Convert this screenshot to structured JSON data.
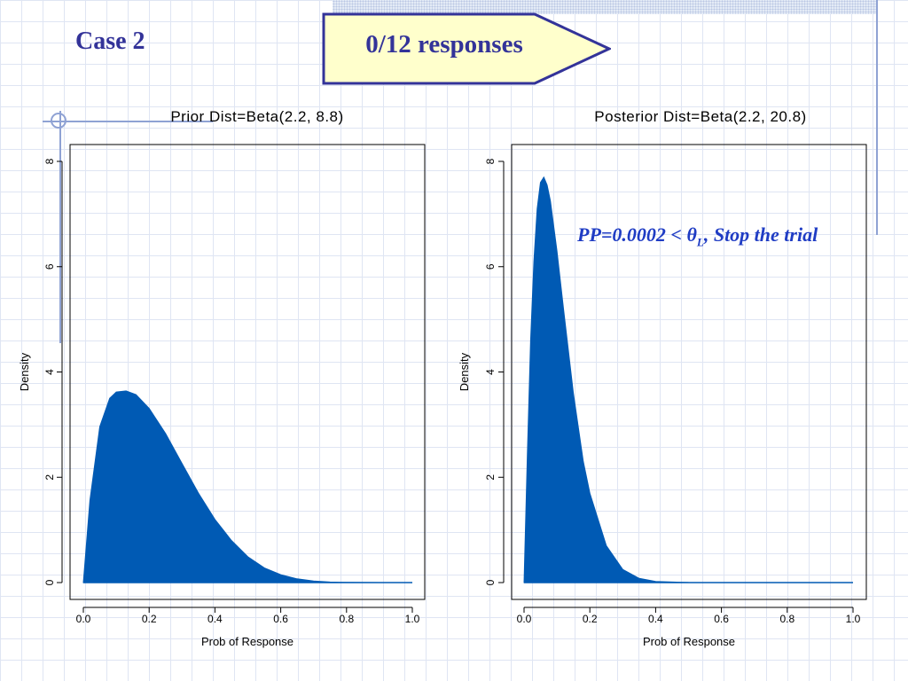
{
  "slide": {
    "title": "Case 2",
    "banner": "0/12 responses",
    "annotation": {
      "prefix": "PP=0.0002 < ",
      "theta": "θ",
      "theta_subscript": "L",
      "suffix": ", Stop the trial"
    },
    "colors": {
      "title": "#333399",
      "banner_fill": "#ffffcc",
      "banner_stroke": "#333399",
      "annotation": "#1f3cc4",
      "curve_fill": "#005ab4"
    }
  },
  "chart_data": [
    {
      "type": "area",
      "title": "Prior Dist=Beta(2.2, 8.8)",
      "xlabel": "Prob of Response",
      "ylabel": "Density",
      "xlim": [
        0,
        1
      ],
      "ylim": [
        0,
        8
      ],
      "xticks": [
        0.0,
        0.2,
        0.4,
        0.6,
        0.8,
        1.0
      ],
      "xtick_labels": [
        "0.0",
        "0.2",
        "0.4",
        "0.6",
        "0.8",
        "1.0"
      ],
      "yticks": [
        0,
        2,
        4,
        6,
        8
      ],
      "ytick_labels": [
        "0",
        "2",
        "4",
        "6",
        "8"
      ],
      "grid": false,
      "series": [
        {
          "x": [
            0.0,
            0.02,
            0.05,
            0.08,
            0.1,
            0.13,
            0.16,
            0.2,
            0.25,
            0.3,
            0.35,
            0.4,
            0.45,
            0.5,
            0.55,
            0.6,
            0.65,
            0.7,
            0.75,
            0.8,
            0.9,
            1.0
          ],
          "y": [
            0.0,
            1.56,
            2.96,
            3.5,
            3.62,
            3.64,
            3.57,
            3.31,
            2.83,
            2.26,
            1.7,
            1.2,
            0.8,
            0.49,
            0.28,
            0.15,
            0.07,
            0.03,
            0.01,
            0.003,
            0.0,
            0.0
          ]
        }
      ]
    },
    {
      "type": "area",
      "title": "Posterior Dist=Beta(2.2, 20.8)",
      "xlabel": "Prob of Response",
      "ylabel": "Density",
      "xlim": [
        0,
        1
      ],
      "ylim": [
        0,
        8
      ],
      "xticks": [
        0.0,
        0.2,
        0.4,
        0.6,
        0.8,
        1.0
      ],
      "xtick_labels": [
        "0.0",
        "0.2",
        "0.4",
        "0.6",
        "0.8",
        "1.0"
      ],
      "yticks": [
        0,
        2,
        4,
        6,
        8
      ],
      "ytick_labels": [
        "0",
        "2",
        "4",
        "6",
        "8"
      ],
      "grid": false,
      "series": [
        {
          "x": [
            0.0,
            0.01,
            0.02,
            0.03,
            0.04,
            0.05,
            0.06,
            0.07,
            0.08,
            0.1,
            0.12,
            0.15,
            0.18,
            0.2,
            0.25,
            0.3,
            0.35,
            0.4,
            0.5,
            0.6,
            0.8,
            1.0
          ],
          "y": [
            0.0,
            2.4,
            4.6,
            6.1,
            7.1,
            7.6,
            7.7,
            7.55,
            7.25,
            6.3,
            5.2,
            3.6,
            2.3,
            1.7,
            0.7,
            0.25,
            0.08,
            0.02,
            0.001,
            0.0,
            0.0,
            0.0
          ]
        }
      ]
    }
  ]
}
